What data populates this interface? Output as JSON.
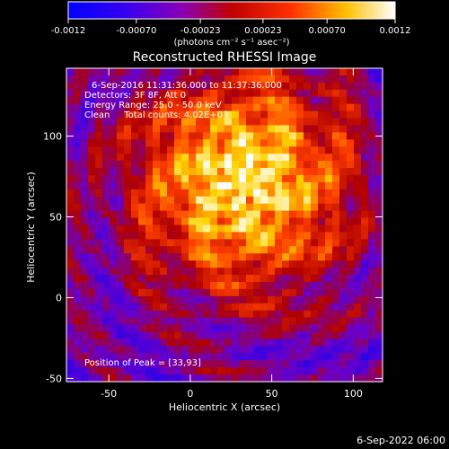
{
  "chart_data": {
    "type": "heatmap",
    "title": "Reconstructed RHESSI Image",
    "xlabel": "Heliocentric X (arcsec)",
    "ylabel": "Heliocentric Y (arcsec)",
    "xlim": [
      -76,
      118
    ],
    "ylim": [
      -52,
      142
    ],
    "xticks": [
      -50,
      0,
      50,
      100
    ],
    "yticks": [
      -50,
      0,
      50,
      100
    ],
    "colorbar": {
      "label": "(photons cm⁻² s⁻¹ asec⁻²)",
      "range": [
        -0.0012,
        0.0012
      ],
      "tick_labels": [
        "-0.0012",
        "-0.00070",
        "-0.00023",
        "0.00023",
        "0.00070",
        "0.0012"
      ],
      "tick_values": [
        -0.0012,
        -0.0007,
        -0.00023,
        0.00023,
        0.0007,
        0.0012
      ]
    },
    "peak": {
      "x": 33,
      "y": 93
    },
    "annotations": [
      "6-Sep-2016 11:31:36.000 to 11:37:36.000",
      "Detectors: 3F 8F, Att 0",
      "Energy Range: 25.0 - 50.0 keV",
      "Clean     Total counts: 4.02E+03",
      "Position of Peak = [33,93]"
    ],
    "footer": "6-Sep-2022 06:00",
    "colors": {
      "background": "#000000",
      "colormap": [
        "#0000ff",
        "#6a00c8",
        "#b10000",
        "#ff4000",
        "#ffd400",
        "#ffffff"
      ]
    }
  }
}
